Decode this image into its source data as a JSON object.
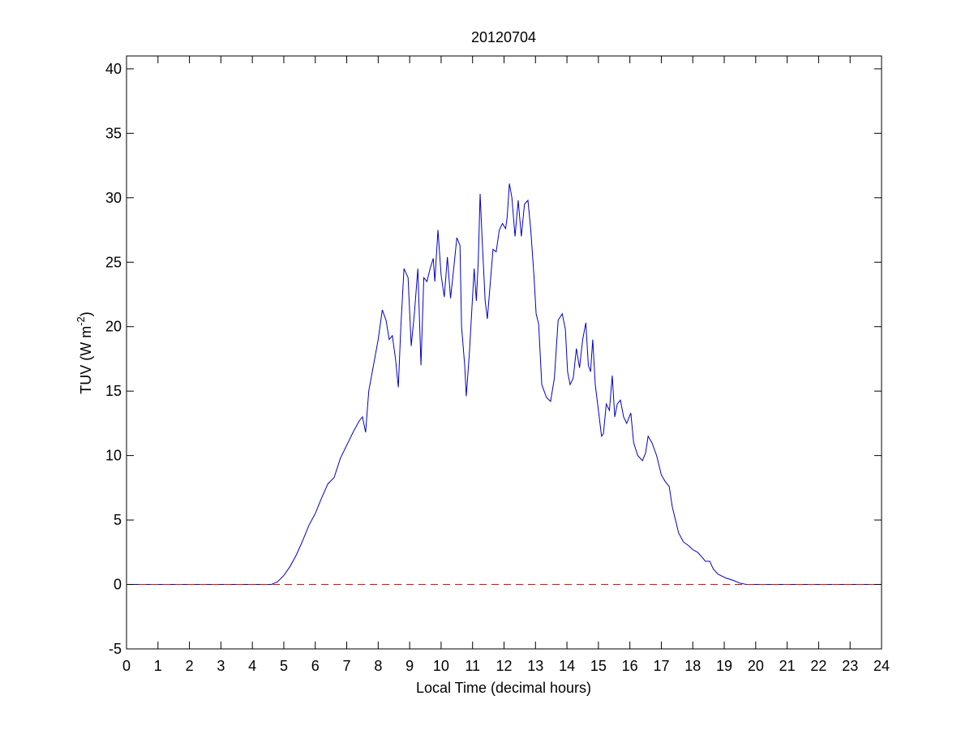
{
  "chart_data": {
    "type": "line",
    "title": "20120704",
    "xlabel": "Local Time (decimal hours)",
    "ylabel": {
      "text": "TUV (W m",
      "sup": "-2",
      "tail": ")"
    },
    "xlim": [
      0,
      24
    ],
    "xticks": [
      0,
      1,
      2,
      3,
      4,
      5,
      6,
      7,
      8,
      9,
      10,
      11,
      12,
      13,
      14,
      15,
      16,
      17,
      18,
      19,
      20,
      21,
      22,
      23,
      24
    ],
    "ylim": [
      -5,
      41
    ],
    "yticks": [
      -5,
      0,
      5,
      10,
      15,
      20,
      25,
      30,
      35,
      40
    ],
    "series": [
      {
        "color": "#0000cc",
        "linestyle": "-",
        "x": [
          0,
          4.6,
          4.8,
          5,
          5.2,
          5.4,
          5.6,
          5.8,
          6,
          6.2,
          6.4,
          6.6,
          6.8,
          7,
          7.2,
          7.4,
          7.5,
          7.6,
          7.7,
          7.85,
          8,
          8.13,
          8.25,
          8.35,
          8.45,
          8.55,
          8.64,
          8.72,
          8.82,
          8.95,
          9.05,
          9.15,
          9.26,
          9.36,
          9.45,
          9.55,
          9.65,
          9.75,
          9.8,
          9.9,
          10,
          10.1,
          10.2,
          10.3,
          10.4,
          10.5,
          10.6,
          10.65,
          10.75,
          10.8,
          10.9,
          11.05,
          11.12,
          11.18,
          11.24,
          11.3,
          11.4,
          11.47,
          11.55,
          11.65,
          11.75,
          11.85,
          11.95,
          12.05,
          12.1,
          12.17,
          12.25,
          12.35,
          12.45,
          12.55,
          12.65,
          12.76,
          12.85,
          12.95,
          13.02,
          13.1,
          13.2,
          13.35,
          13.48,
          13.6,
          13.72,
          13.85,
          13.95,
          14.02,
          14.1,
          14.2,
          14.3,
          14.4,
          14.5,
          14.6,
          14.68,
          14.75,
          14.82,
          14.9,
          15,
          15.1,
          15.16,
          15.25,
          15.35,
          15.44,
          15.52,
          15.6,
          15.7,
          15.8,
          15.9,
          16.03,
          16.12,
          16.25,
          16.4,
          16.5,
          16.58,
          16.7,
          16.85,
          17,
          17.12,
          17.25,
          17.35,
          17.45,
          17.55,
          17.7,
          17.87,
          18,
          18.15,
          18.3,
          18.4,
          18.54,
          18.65,
          18.8,
          19.05,
          19.3,
          19.5,
          19.7,
          24
        ],
        "values": [
          0,
          0,
          0.2,
          0.7,
          1.4,
          2.3,
          3.4,
          4.6,
          5.5,
          6.7,
          7.8,
          8.3,
          9.8,
          10.8,
          11.8,
          12.7,
          13,
          11.8,
          15,
          17,
          19,
          21.3,
          20.5,
          19,
          19.3,
          17.5,
          15.3,
          20,
          24.5,
          23.8,
          18.5,
          21,
          24.5,
          17,
          23.8,
          23.5,
          24.5,
          25.3,
          23.5,
          27.5,
          24,
          22.3,
          25.4,
          22.2,
          24.5,
          26.9,
          26.3,
          20,
          17,
          14.6,
          18,
          24.5,
          22,
          25,
          30.3,
          27,
          22,
          20.6,
          23,
          26,
          25.8,
          27.5,
          28,
          27.6,
          28.5,
          31.1,
          30,
          27,
          29.8,
          27,
          29.5,
          29.8,
          27.5,
          24,
          21,
          20.2,
          15.5,
          14.5,
          14.2,
          16,
          20.5,
          21,
          19.8,
          16.5,
          15.5,
          16,
          18.3,
          16.8,
          19,
          20.3,
          17,
          16.5,
          19,
          15.5,
          13.5,
          11.5,
          11.7,
          14,
          13.5,
          16.2,
          13,
          14,
          14.3,
          13,
          12.5,
          13.3,
          11,
          10,
          9.6,
          10.2,
          11.5,
          11,
          10,
          8.5,
          8,
          7.6,
          6,
          5,
          4,
          3.3,
          3,
          2.7,
          2.5,
          2.1,
          1.8,
          1.8,
          1.2,
          0.8,
          0.5,
          0.3,
          0.1,
          0,
          0
        ]
      },
      {
        "color": "#ff0000",
        "linestyle": "--",
        "x": [
          0,
          24
        ],
        "values": [
          0,
          0
        ]
      }
    ]
  }
}
